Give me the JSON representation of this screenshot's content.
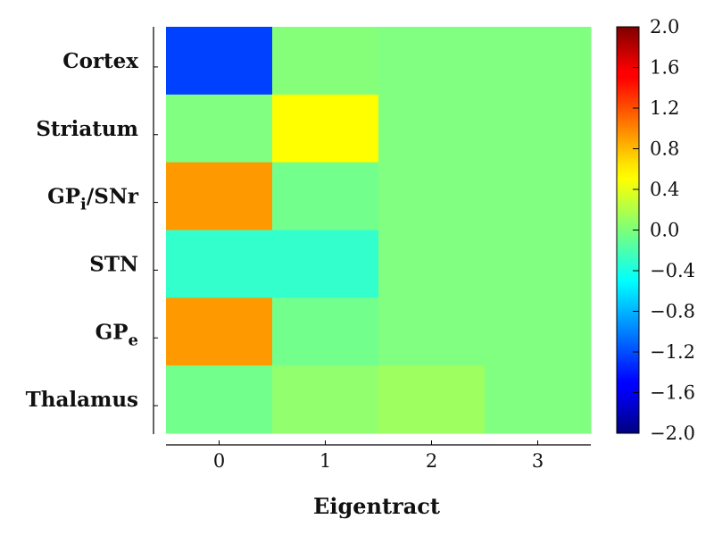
{
  "chart_data": {
    "type": "heatmap",
    "title": "",
    "xlabel": "Eigentract",
    "ylabel": "",
    "x_categories": [
      "0",
      "1",
      "2",
      "3"
    ],
    "y_categories": [
      {
        "base": "Cortex",
        "sub": ""
      },
      {
        "base": "Striatum",
        "sub": ""
      },
      {
        "base": "GP",
        "sub": "i",
        "suffix": "/SNr"
      },
      {
        "base": "STN",
        "sub": ""
      },
      {
        "base": "GP",
        "sub": "e"
      },
      {
        "base": "Thalamus",
        "sub": ""
      }
    ],
    "values": [
      [
        -1.25,
        0.02,
        0.0,
        0.0
      ],
      [
        0.0,
        0.5,
        0.0,
        0.0
      ],
      [
        0.9,
        -0.05,
        0.0,
        0.0
      ],
      [
        -0.3,
        -0.3,
        0.0,
        0.0
      ],
      [
        0.9,
        -0.05,
        0.0,
        0.0
      ],
      [
        -0.05,
        0.07,
        0.12,
        0.0
      ]
    ],
    "colorbar": {
      "colormap": "jet",
      "range": [
        -2.0,
        2.0
      ],
      "ticks": [
        "2.0",
        "1.6",
        "1.2",
        "0.8",
        "0.4",
        "0.0",
        "−0.4",
        "−0.8",
        "−1.2",
        "−1.6",
        "−2.0"
      ]
    },
    "grid": false,
    "legend": "none"
  }
}
